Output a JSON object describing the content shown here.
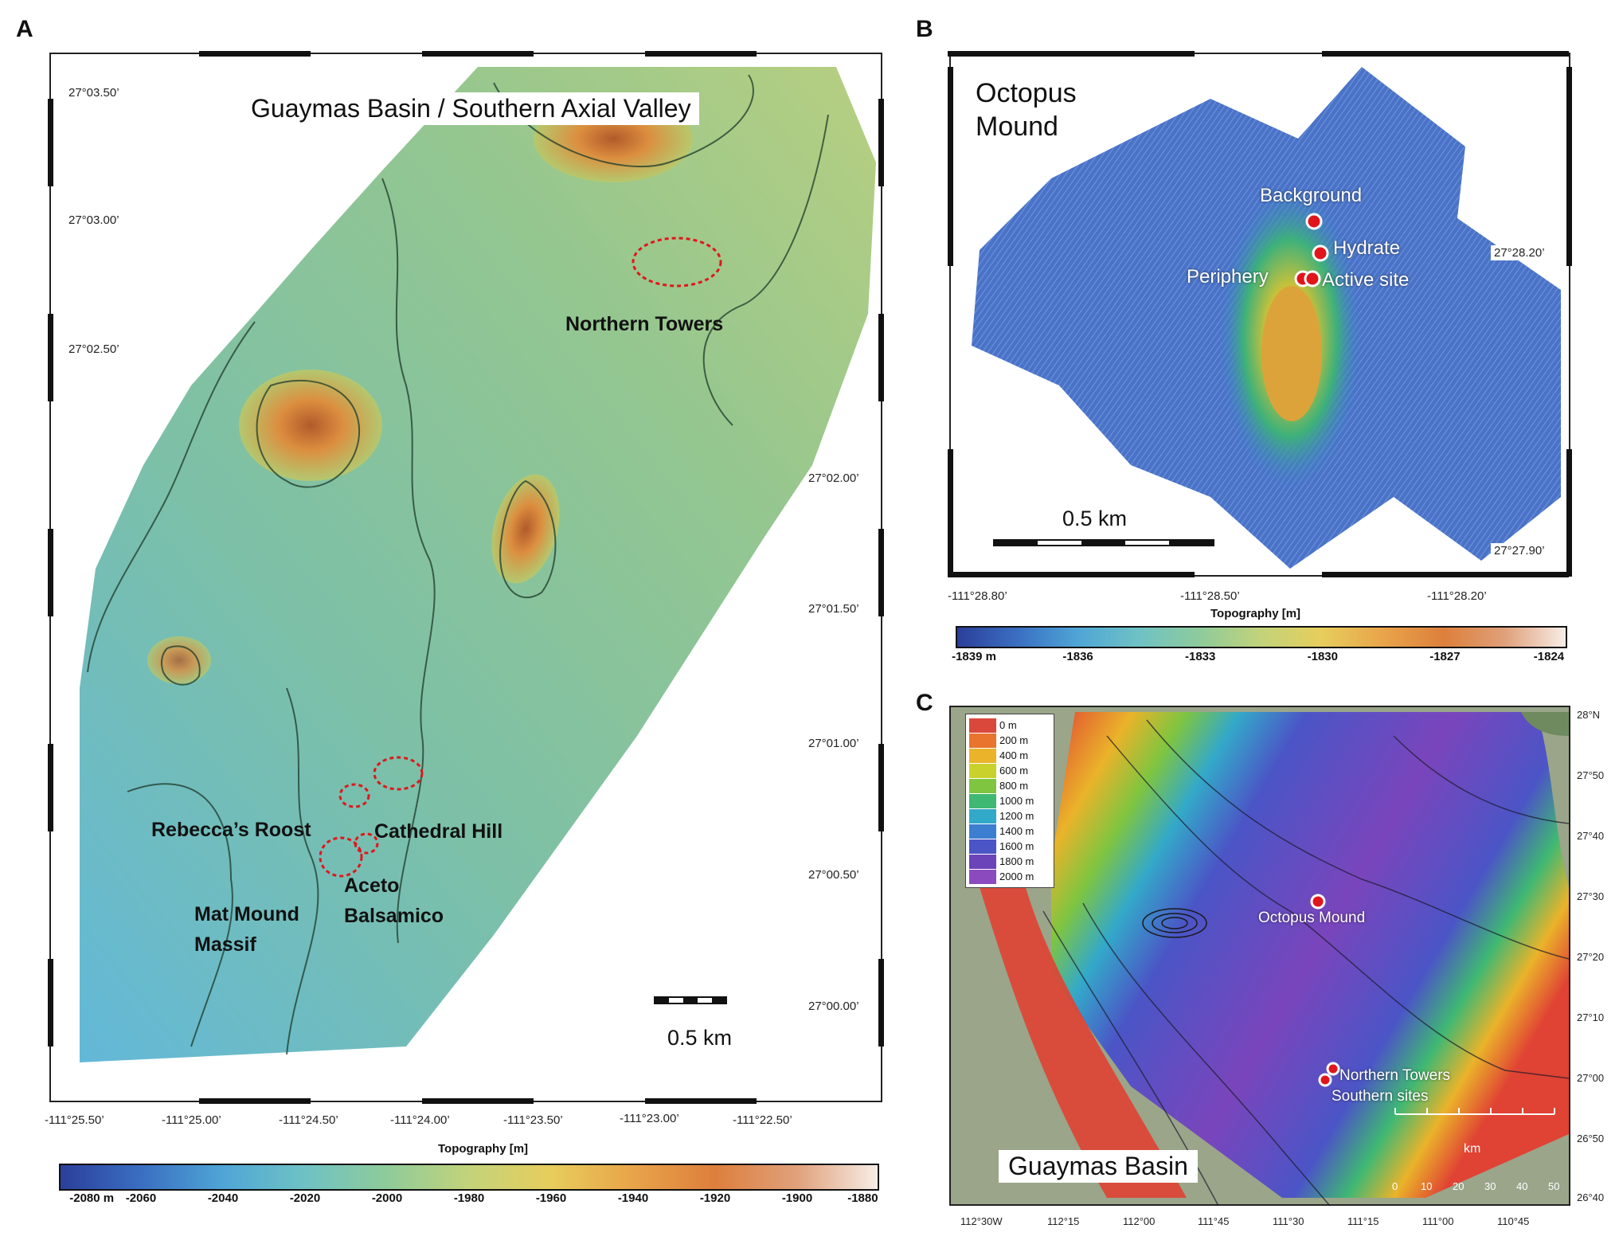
{
  "panel_a": {
    "letter": "A",
    "title": "Guaymas Basin / Southern Axial Valley",
    "lat_labels": [
      "27°03.50’",
      "27°03.00’",
      "27°02.50’",
      "27°02.00’",
      "27°01.50’",
      "27°01.00’",
      "27°00.50’",
      "27°00.00’"
    ],
    "lon_labels": [
      "-111°25.50’",
      "-111°25.00’",
      "-111°24.50’",
      "-111°24.00’",
      "-111°23.50’",
      "-111°23.00’",
      "-111°22.50’"
    ],
    "sites": {
      "northern_towers": "Northern Towers",
      "rebeccas_roost": "Rebecca’s Roost",
      "cathedral_hill": "Cathedral Hill",
      "aceto_1": "Aceto",
      "aceto_2": "Balsamico",
      "mat_mound_1": "Mat Mound",
      "mat_mound_2": "Massif"
    },
    "scale_label": "0.5 km",
    "colorbar": {
      "title": "Topography [m]",
      "ticks": [
        "-2080 m",
        "-2060",
        "-2040",
        "-2020",
        "-2000",
        "-1980",
        "-1960",
        "-1940",
        "-1920",
        "-1900",
        "-1880"
      ]
    }
  },
  "panel_b": {
    "letter": "B",
    "title_line1": "Octopus",
    "title_line2": "Mound",
    "sites": {
      "background": "Background",
      "hydrate": "Hydrate",
      "periphery": "Periphery",
      "active_site": "Active site"
    },
    "lat_labels": [
      "27°28.20’",
      "27°27.90’"
    ],
    "lon_labels": [
      "-111°28.80’",
      "-111°28.50’",
      "-111°28.20’"
    ],
    "scale_label": "0.5 km",
    "colorbar": {
      "title": "Topography [m]",
      "ticks": [
        "-1839 m",
        "-1836",
        "-1833",
        "-1830",
        "-1827",
        "-1824"
      ]
    }
  },
  "panel_c": {
    "letter": "C",
    "title": "Guaymas Basin",
    "legend": [
      "0 m",
      "200 m",
      "400 m",
      "600 m",
      "800 m",
      "1000 m",
      "1200 m",
      "1400 m",
      "1600 m",
      "1800 m",
      "2000 m"
    ],
    "legend_colors": [
      "#d9483b",
      "#e8742e",
      "#eab32a",
      "#c9d22c",
      "#7fc540",
      "#3fb873",
      "#33a9c9",
      "#3c7fd0",
      "#4b55c6",
      "#6a44b8",
      "#8b4bbf"
    ],
    "sites": {
      "octopus": "Octopus Mound",
      "northern_towers": "Northern Towers",
      "southern_sites": "Southern sites"
    },
    "lat_labels": [
      "28°N",
      "27°50",
      "27°40",
      "27°30",
      "27°20",
      "27°10",
      "27°00",
      "26°50",
      "26°40"
    ],
    "lon_labels": [
      "112°30W",
      "112°15",
      "112°00",
      "111°45",
      "111°30",
      "111°15",
      "111°00",
      "110°45"
    ],
    "scale_unit": "km",
    "scale_ticks": [
      "0",
      "10",
      "20",
      "30",
      "40",
      "50"
    ]
  }
}
